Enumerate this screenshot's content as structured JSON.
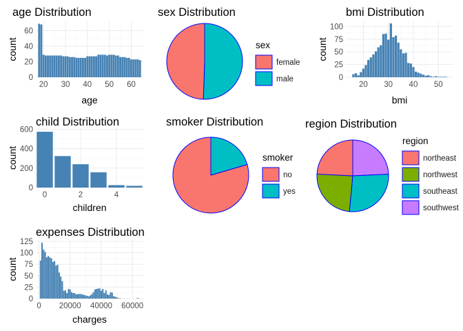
{
  "chart_data": [
    {
      "id": "age",
      "type": "bar",
      "title": "age Distribution",
      "xlabel": "age",
      "ylabel": "count",
      "x": [
        18,
        19,
        20,
        21,
        22,
        23,
        24,
        25,
        26,
        27,
        28,
        29,
        30,
        31,
        32,
        33,
        34,
        35,
        36,
        37,
        38,
        39,
        40,
        41,
        42,
        43,
        44,
        45,
        46,
        47,
        48,
        49,
        50,
        51,
        52,
        53,
        54,
        55,
        56,
        57,
        58,
        59,
        60,
        61,
        62,
        63,
        64
      ],
      "values": [
        69,
        68,
        29,
        28,
        28,
        28,
        28,
        28,
        28,
        28,
        28,
        27,
        27,
        27,
        26,
        26,
        26,
        25,
        25,
        25,
        25,
        25,
        27,
        27,
        27,
        27,
        27,
        29,
        29,
        29,
        29,
        28,
        29,
        29,
        29,
        28,
        28,
        26,
        26,
        26,
        25,
        25,
        23,
        23,
        23,
        23,
        22
      ],
      "xlim": [
        16.5,
        65.5
      ],
      "ylim": [
        0,
        72
      ],
      "xticks": [
        20,
        30,
        40,
        50,
        60
      ],
      "yticks": [
        0,
        20,
        40,
        60
      ],
      "color": "#4682B4"
    },
    {
      "id": "sex",
      "type": "pie",
      "title": "sex Distribution",
      "legend_title": "sex",
      "labels": [
        "female",
        "male"
      ],
      "values": [
        662,
        676
      ],
      "colors": [
        "#F8766D",
        "#00BFC4"
      ],
      "border": "#0000FF"
    },
    {
      "id": "bmi",
      "type": "bar",
      "title": "bmi Distribution",
      "xlabel": "bmi",
      "ylabel": "count",
      "x": [
        16,
        17,
        18,
        19,
        20,
        21,
        22,
        23,
        24,
        25,
        26,
        27,
        28,
        29,
        30,
        31,
        32,
        33,
        34,
        35,
        36,
        37,
        38,
        39,
        40,
        41,
        42,
        43,
        44,
        45,
        46,
        47,
        48,
        49,
        50,
        51,
        52,
        53
      ],
      "values": [
        6,
        8,
        4,
        10,
        17,
        24,
        34,
        39,
        45,
        51,
        59,
        63,
        85,
        86,
        74,
        106,
        79,
        82,
        68,
        55,
        47,
        48,
        28,
        27,
        20,
        11,
        9,
        7,
        5,
        3,
        4,
        2,
        1,
        2,
        1,
        1,
        1,
        1
      ],
      "xlim": [
        13,
        56
      ],
      "ylim": [
        0,
        110
      ],
      "xticks": [
        20,
        30,
        40,
        50
      ],
      "yticks": [
        0,
        25,
        50,
        75,
        100
      ],
      "color": "#4682B4"
    },
    {
      "id": "children",
      "type": "bar",
      "title": "child Distribution",
      "xlabel": "children",
      "ylabel": "count",
      "x": [
        0,
        1,
        2,
        3,
        4,
        5
      ],
      "values": [
        574,
        324,
        240,
        157,
        25,
        18
      ],
      "xlim": [
        -0.5,
        5.5
      ],
      "ylim": [
        0,
        610
      ],
      "xticks": [
        0,
        2,
        4
      ],
      "yticks": [
        0,
        200,
        400,
        600
      ],
      "color": "#4682B4"
    },
    {
      "id": "smoker",
      "type": "pie",
      "title": "smoker Distribution",
      "legend_title": "smoker",
      "labels": [
        "no",
        "yes"
      ],
      "values": [
        1064,
        274
      ],
      "colors": [
        "#F8766D",
        "#00BFC4"
      ],
      "border": "#0000FF"
    },
    {
      "id": "region",
      "type": "pie",
      "title": "region Distribution",
      "legend_title": "region",
      "labels": [
        "northeast",
        "northwest",
        "southeast",
        "southwest"
      ],
      "values": [
        324,
        325,
        364,
        325
      ],
      "colors": [
        "#F8766D",
        "#7CAE00",
        "#00BFC4",
        "#C77CFF"
      ],
      "border": "#0000FF"
    },
    {
      "id": "expenses",
      "type": "bar",
      "title": "expenses Distribution",
      "xlabel": "charges",
      "ylabel": "count",
      "x": [
        1000,
        2000,
        3000,
        4000,
        5000,
        6000,
        7000,
        8000,
        9000,
        10000,
        11000,
        12000,
        13000,
        14000,
        15000,
        16000,
        17000,
        18000,
        19000,
        20000,
        21000,
        22000,
        23000,
        24000,
        25000,
        26000,
        27000,
        28000,
        29000,
        30000,
        31000,
        32000,
        33000,
        34000,
        35000,
        36000,
        37000,
        38000,
        39000,
        40000,
        41000,
        42000,
        43000,
        44000,
        45000,
        46000,
        47000,
        48000,
        49000,
        50000,
        51000,
        52000,
        53000,
        54000,
        55000,
        56000,
        57000,
        58000,
        59000,
        60000,
        61000,
        62000,
        63000,
        64000
      ],
      "values": [
        83,
        122,
        107,
        102,
        90,
        93,
        90,
        88,
        80,
        82,
        72,
        74,
        57,
        48,
        38,
        17,
        18,
        12,
        21,
        20,
        14,
        12,
        12,
        9,
        10,
        10,
        10,
        9,
        8,
        7,
        6,
        5,
        7,
        10,
        14,
        20,
        21,
        22,
        22,
        17,
        21,
        12,
        18,
        9,
        8,
        14,
        13,
        5,
        4,
        3,
        1,
        1,
        0,
        0,
        0,
        0,
        0,
        0,
        0,
        0,
        0,
        0,
        1,
        1
      ],
      "xlim": [
        -2000,
        67000
      ],
      "ylim": [
        0,
        128
      ],
      "xticks": [
        0,
        20000,
        40000,
        60000
      ],
      "yticks": [
        0,
        25,
        50,
        75,
        100,
        125
      ],
      "color": "#4682B4"
    }
  ]
}
